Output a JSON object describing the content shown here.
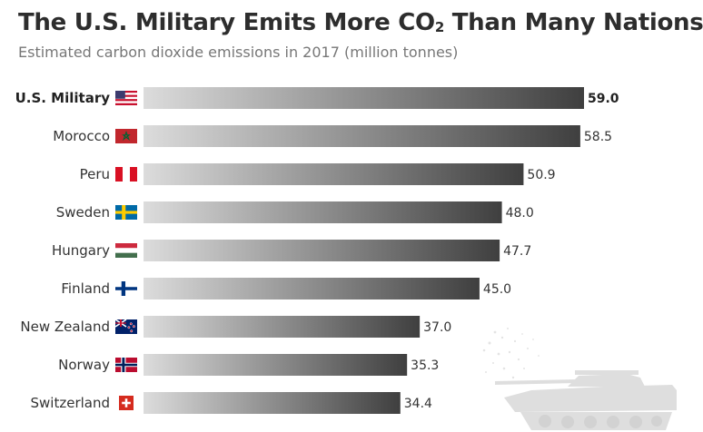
{
  "title": {
    "before": "The U.S. Military Emits More CO",
    "subscript": "2",
    "after": " Than Many Nations"
  },
  "subtitle": "Estimated carbon dioxide emissions in 2017 (million tonnes)",
  "chart_data": {
    "type": "bar",
    "orientation": "horizontal",
    "title": "The U.S. Military Emits More CO2 Than Many Nations",
    "subtitle": "Estimated carbon dioxide emissions in 2017 (million tonnes)",
    "categories": [
      "U.S. Military",
      "Morocco",
      "Peru",
      "Sweden",
      "Hungary",
      "Finland",
      "New Zealand",
      "Norway",
      "Switzerland"
    ],
    "values": [
      59.0,
      58.5,
      50.9,
      48.0,
      47.7,
      45.0,
      37.0,
      35.3,
      34.4
    ],
    "value_labels": [
      "59.0",
      "58.5",
      "50.9",
      "48.0",
      "47.7",
      "45.0",
      "37.0",
      "35.3",
      "34.4"
    ],
    "flags": [
      "us-flag-icon",
      "morocco-flag-icon",
      "peru-flag-icon",
      "sweden-flag-icon",
      "hungary-flag-icon",
      "finland-flag-icon",
      "new-zealand-flag-icon",
      "norway-flag-icon",
      "switzerland-flag-icon"
    ],
    "highlight": "U.S. Military",
    "xlim": [
      0,
      59.0
    ],
    "xlabel": "",
    "ylabel": "",
    "grid": false,
    "bar_gradient": [
      "#dcdcdc",
      "#3f3f3f"
    ]
  }
}
